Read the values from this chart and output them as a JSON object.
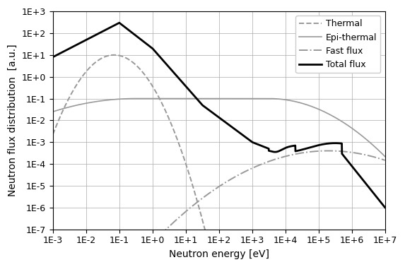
{
  "title": "",
  "xlabel": "Neutron energy [eV]",
  "ylabel": "Neutron flux distribution  [a.u.]",
  "xlim_log": [
    -3,
    7
  ],
  "ylim_log": [
    -7,
    3
  ],
  "legend_entries": [
    "Thermal",
    "Epi-thermal",
    "Fast flux",
    "Total flux"
  ],
  "background_color": "#ffffff",
  "grid_color": "#aaaaaa",
  "thermal_color": "#999999",
  "epithermal_color": "#999999",
  "fast_color": "#999999",
  "total_color": "#000000",
  "label_fontsize": 10,
  "tick_fontsize": 9,
  "legend_fontsize": 9
}
